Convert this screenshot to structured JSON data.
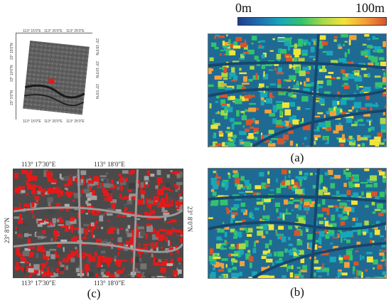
{
  "colorbar": {
    "min_label": "0m",
    "max_label": "100m",
    "colors": [
      "#1c3f8f",
      "#1f6fb0",
      "#19a7b8",
      "#33c26e",
      "#a7d94a",
      "#f1e43a",
      "#f4a03a",
      "#d8542b"
    ]
  },
  "panels": {
    "a": {
      "caption": "(a)"
    },
    "b": {
      "caption": "(b)"
    },
    "c": {
      "caption": "(c)",
      "top_lon_1": "113° 17′30″E",
      "top_lon_2": "113° 18′0″E",
      "bottom_lon_1": "113° 17′30″E",
      "bottom_lon_2": "113° 18′0″E",
      "left_lat": "23° 8′0″N",
      "right_lat": "23° 8′0″N"
    }
  },
  "locator": {
    "top_ticks": [
      "113° 15′0″E",
      "113° 20′0″E",
      "113° 25′0″E"
    ],
    "bottom_ticks": [
      "113° 15′0″E",
      "113° 20′0″E",
      "113° 25′0″E"
    ],
    "left_ticks": [
      "23° 15′0″N",
      "23° 10′0″N",
      "23° 5′0″N"
    ],
    "right_ticks": [
      "23° 15′0″N",
      "23° 10′0″N",
      "23° 5′0″N"
    ],
    "highlight_color": "#e01b1b"
  }
}
